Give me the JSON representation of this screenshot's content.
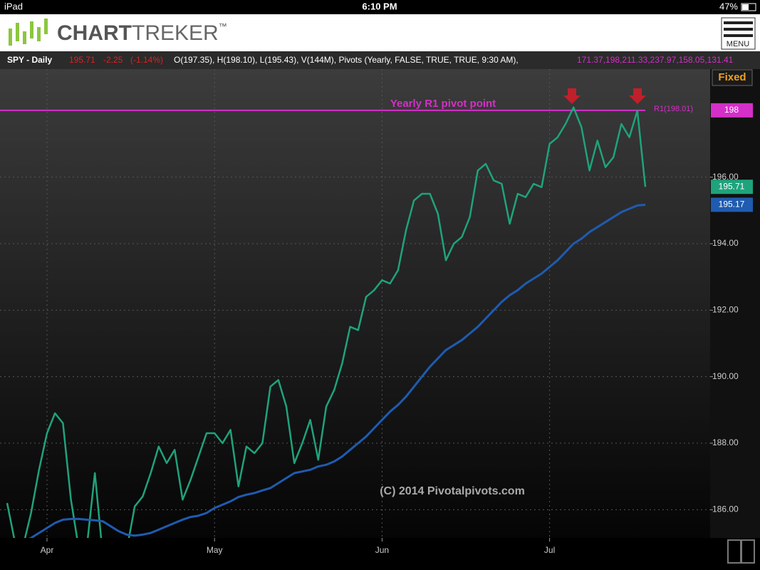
{
  "status_bar": {
    "device": "iPad",
    "time": "6:10 PM",
    "battery": "47%"
  },
  "header": {
    "logo_bold": "CHART",
    "logo_light": "TREKER",
    "trademark": "™",
    "menu": "MENU"
  },
  "info_bar": {
    "symbol": "SPY - Daily",
    "last": "195.71",
    "change": "-2.25",
    "change_pct": "(-1.14%)",
    "ohlcv": "O(197.35), H(198.10), L(195.43), V(144M), Pivots (Yearly, FALSE, TRUE, TRUE, 9:30 AM),",
    "pivot_values": "171.37,198,211.33,237.97,158.05,131.41"
  },
  "mode": "Fixed",
  "watermark": "(C) 2014 Pivotalpivots.com",
  "chart_data": {
    "type": "line",
    "annotation": "Yearly R1 pivot point",
    "pivot": {
      "value": 198.01,
      "label": "R1(198.01)",
      "tag": "198",
      "color": "#d42fc8"
    },
    "categories": [
      null,
      null,
      null,
      null,
      null,
      "Apr",
      null,
      null,
      null,
      null,
      null,
      null,
      null,
      null,
      null,
      null,
      null,
      null,
      null,
      null,
      null,
      null,
      null,
      null,
      null,
      null,
      "May",
      null,
      null,
      null,
      null,
      null,
      null,
      null,
      null,
      null,
      null,
      null,
      null,
      null,
      null,
      null,
      null,
      null,
      null,
      null,
      null,
      "Jun",
      null,
      null,
      null,
      null,
      null,
      null,
      null,
      null,
      null,
      null,
      null,
      null,
      null,
      null,
      null,
      null,
      null,
      null,
      null,
      null,
      "Jul",
      null,
      null,
      null,
      null,
      null,
      null,
      null,
      null,
      null,
      null,
      null,
      null
    ],
    "series": [
      {
        "name": "SPY",
        "color": "#1fa37c",
        "values": [
          186.2,
          185.0,
          184.9,
          185.9,
          187.2,
          188.3,
          188.9,
          188.6,
          186.3,
          184.8,
          184.9,
          187.1,
          184.6,
          184.5,
          184.7,
          184.8,
          186.1,
          186.4,
          187.1,
          187.9,
          187.4,
          187.8,
          186.3,
          186.9,
          187.6,
          188.3,
          188.3,
          188.0,
          188.4,
          186.7,
          187.9,
          187.7,
          188.0,
          189.7,
          189.9,
          189.1,
          187.4,
          188.0,
          188.7,
          187.5,
          189.1,
          189.6,
          190.4,
          191.5,
          191.4,
          192.4,
          192.6,
          192.9,
          192.8,
          193.2,
          194.4,
          195.3,
          195.5,
          195.5,
          194.9,
          193.5,
          194.0,
          194.2,
          194.8,
          196.2,
          196.4,
          195.9,
          195.8,
          194.6,
          195.5,
          195.4,
          195.8,
          195.7,
          197.0,
          197.2,
          197.6,
          198.1,
          197.5,
          196.2,
          197.1,
          196.3,
          196.6,
          197.6,
          197.2,
          198.0,
          195.71
        ]
      },
      {
        "name": "MA",
        "color": "#1f5bb0",
        "values": [
          185.0,
          185.0,
          185.05,
          185.15,
          185.3,
          185.45,
          185.6,
          185.7,
          185.72,
          185.72,
          185.7,
          185.68,
          185.65,
          185.5,
          185.35,
          185.25,
          185.22,
          185.25,
          185.3,
          185.4,
          185.5,
          185.6,
          185.7,
          185.78,
          185.82,
          185.9,
          186.05,
          186.15,
          186.25,
          186.38,
          186.45,
          186.5,
          186.58,
          186.65,
          186.8,
          186.95,
          187.1,
          187.15,
          187.2,
          187.3,
          187.35,
          187.45,
          187.6,
          187.8,
          188.0,
          188.2,
          188.45,
          188.7,
          188.95,
          189.15,
          189.4,
          189.7,
          190.0,
          190.3,
          190.55,
          190.8,
          190.95,
          191.1,
          191.3,
          191.5,
          191.75,
          192.0,
          192.25,
          192.45,
          192.6,
          192.8,
          192.95,
          193.1,
          193.3,
          193.5,
          193.75,
          194.0,
          194.15,
          194.35,
          194.5,
          194.65,
          194.8,
          194.95,
          195.05,
          195.15,
          195.17
        ]
      }
    ],
    "ylim": [
      185.15,
      199.25
    ],
    "yticks": [
      {
        "value": 186,
        "label": "186.00"
      },
      {
        "value": 188,
        "label": "188.00"
      },
      {
        "value": 190,
        "label": "190.00"
      },
      {
        "value": 192,
        "label": "192.00"
      },
      {
        "value": 194,
        "label": "194.00"
      },
      {
        "value": 196,
        "label": "196.00"
      }
    ],
    "grid": true
  }
}
